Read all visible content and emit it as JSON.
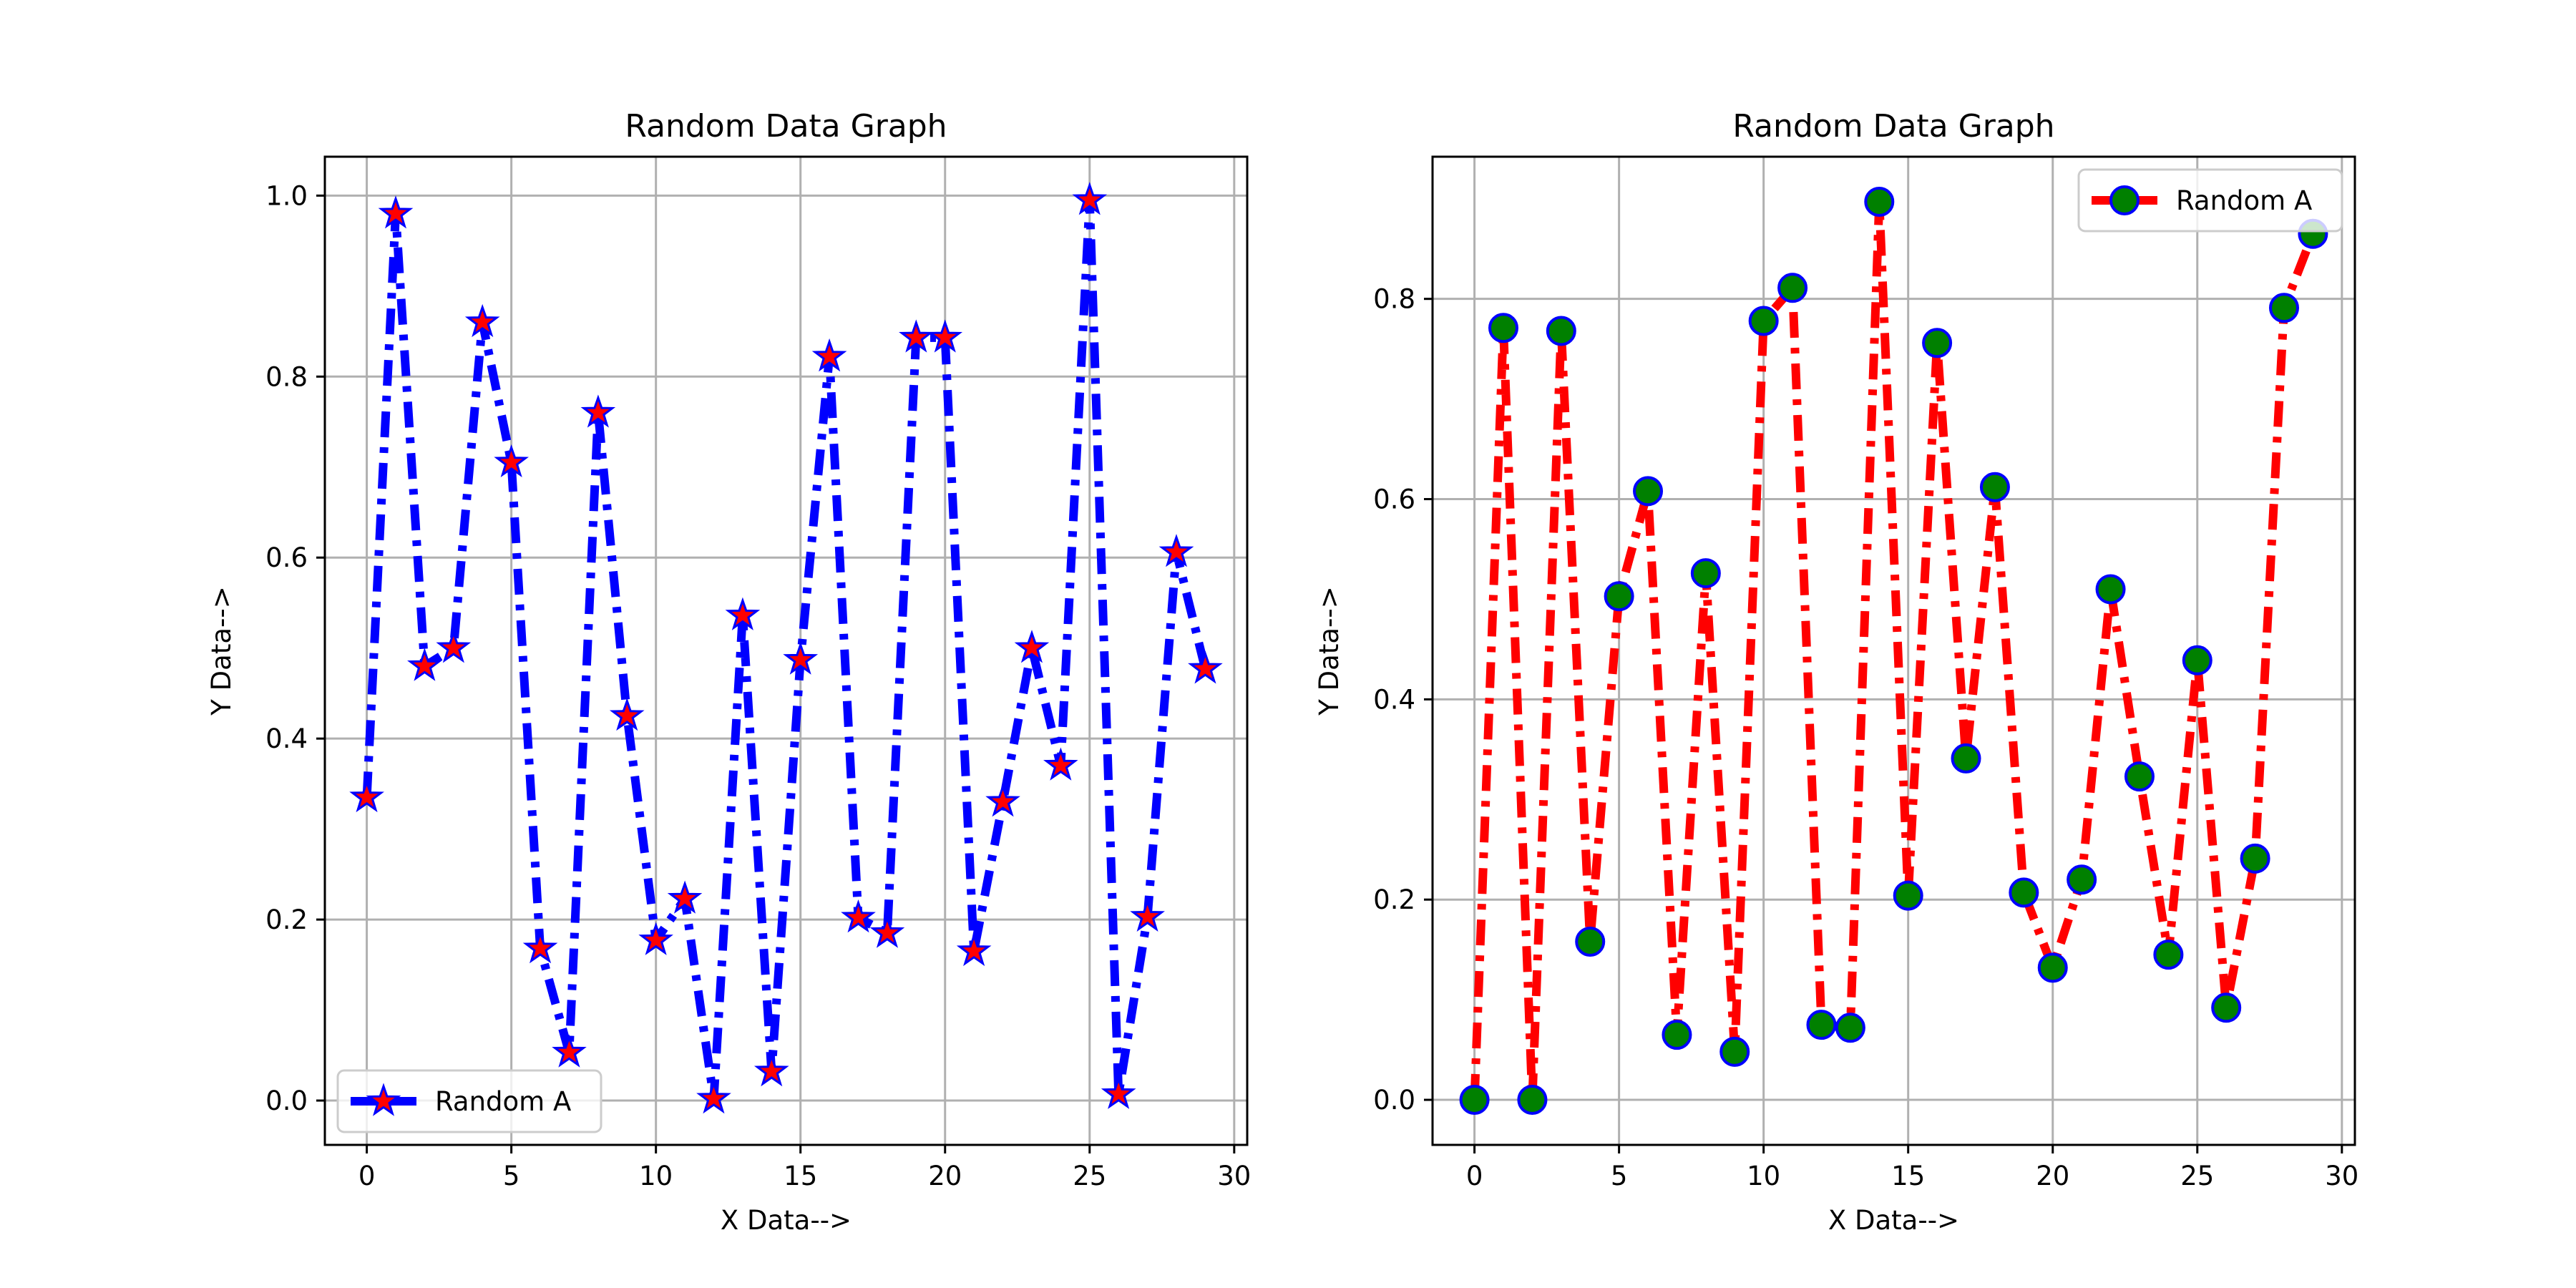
{
  "chart_data": [
    {
      "type": "line",
      "title": "Random Data Graph",
      "xlabel": "X Data-->",
      "ylabel": "Y Data-->",
      "xlim": [
        -1.45,
        30.45
      ],
      "ylim": [
        -0.049,
        1.043
      ],
      "xticks": [
        0,
        5,
        10,
        15,
        20,
        25,
        30
      ],
      "yticks": [
        0.0,
        0.2,
        0.4,
        0.6,
        0.8,
        1.0
      ],
      "ytick_labels": [
        "0.0",
        "0.2",
        "0.4",
        "0.6",
        "0.8",
        "1.0"
      ],
      "grid": true,
      "legend_position": "lower-left",
      "series": [
        {
          "name": "Random A",
          "line_color": "#0000ff",
          "line_style": "dashdot",
          "marker": "star",
          "marker_face": "#ff0000",
          "marker_edge": "#0000ff",
          "x": [
            0,
            1,
            2,
            3,
            4,
            5,
            6,
            7,
            8,
            9,
            10,
            11,
            12,
            13,
            14,
            15,
            16,
            17,
            18,
            19,
            20,
            21,
            22,
            23,
            24,
            25,
            26,
            27,
            28,
            29
          ],
          "y": [
            0.335,
            0.98,
            0.48,
            0.5,
            0.86,
            0.705,
            0.168,
            0.053,
            0.76,
            0.425,
            0.177,
            0.223,
            0.002,
            0.536,
            0.032,
            0.487,
            0.822,
            0.202,
            0.185,
            0.843,
            0.843,
            0.165,
            0.33,
            0.5,
            0.37,
            0.995,
            0.007,
            0.203,
            0.606,
            0.477
          ]
        }
      ]
    },
    {
      "type": "line",
      "title": "Random Data Graph",
      "xlabel": "X Data-->",
      "ylabel": "Y Data-->",
      "xlim": [
        -1.45,
        30.45
      ],
      "ylim": [
        -0.045,
        0.942
      ],
      "xticks": [
        0,
        5,
        10,
        15,
        20,
        25,
        30
      ],
      "yticks": [
        0.0,
        0.2,
        0.4,
        0.6,
        0.8
      ],
      "ytick_labels": [
        "0.0",
        "0.2",
        "0.4",
        "0.6",
        "0.8"
      ],
      "grid": true,
      "legend_position": "upper-right",
      "series": [
        {
          "name": "Random A",
          "line_color": "#ff0000",
          "line_style": "dashdot",
          "marker": "circle",
          "marker_face": "#008000",
          "marker_edge": "#0000ff",
          "x": [
            0,
            1,
            2,
            3,
            4,
            5,
            6,
            7,
            8,
            9,
            10,
            11,
            12,
            13,
            14,
            15,
            16,
            17,
            18,
            19,
            20,
            21,
            22,
            23,
            24,
            25,
            26,
            27,
            28,
            29
          ],
          "y": [
            0.0,
            0.771,
            0.0,
            0.768,
            0.158,
            0.503,
            0.608,
            0.065,
            0.526,
            0.048,
            0.778,
            0.811,
            0.075,
            0.072,
            0.897,
            0.204,
            0.756,
            0.341,
            0.612,
            0.207,
            0.132,
            0.22,
            0.51,
            0.323,
            0.145,
            0.439,
            0.092,
            0.241,
            0.791,
            0.865
          ]
        }
      ]
    }
  ]
}
